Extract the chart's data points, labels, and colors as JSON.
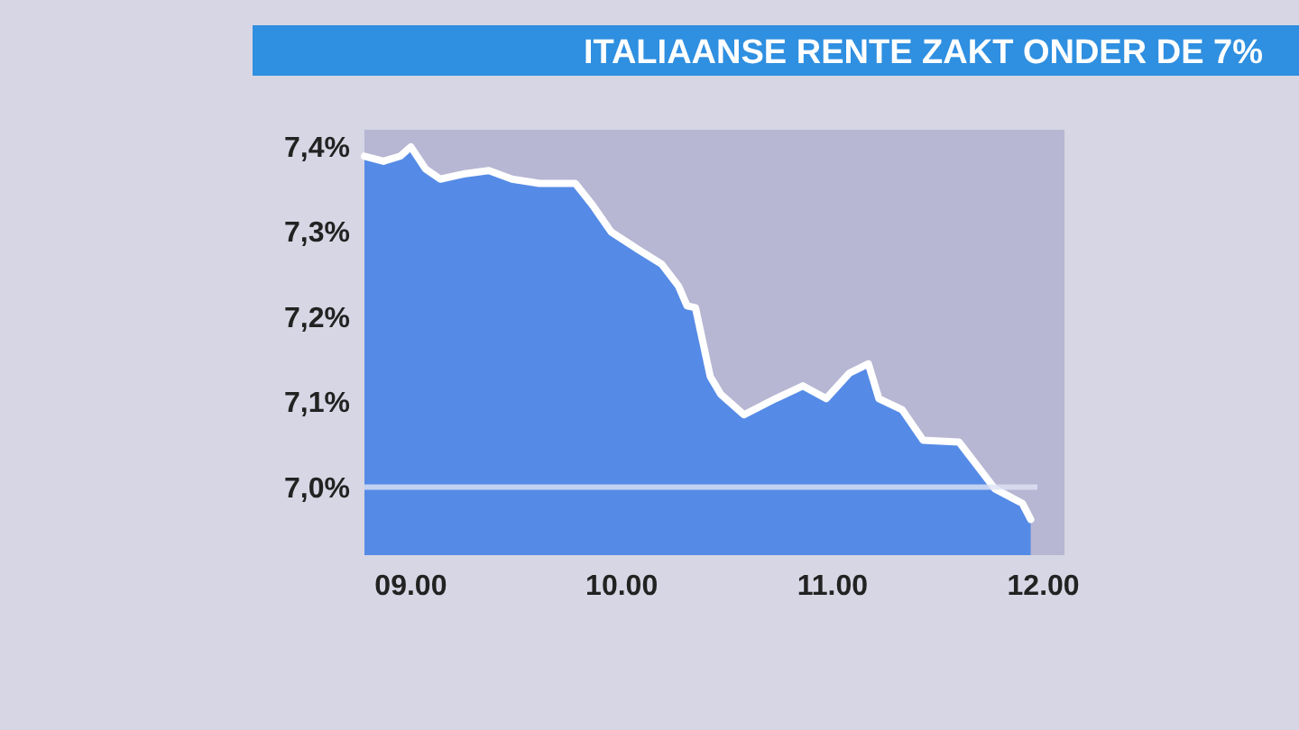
{
  "chart_data": {
    "type": "area",
    "title": "ITALIAANSE RENTE ZAKT ONDER DE 7%",
    "xlim": [
      8.78,
      12.1
    ],
    "xticks": [
      {
        "value": 9,
        "label": "09.00"
      },
      {
        "value": 10,
        "label": "10.00"
      },
      {
        "value": 11,
        "label": "11.00"
      },
      {
        "value": 12,
        "label": "12.00"
      }
    ],
    "ylim": [
      6.92,
      7.42
    ],
    "yticks": [
      {
        "value": 7.0,
        "label": "7,0%"
      },
      {
        "value": 7.1,
        "label": "7,1%"
      },
      {
        "value": 7.2,
        "label": "7,2%"
      },
      {
        "value": 7.3,
        "label": "7,3%"
      },
      {
        "value": 7.4,
        "label": "7,4%"
      }
    ],
    "grid": false,
    "ref_lines": [
      {
        "axis": "y",
        "value": 7.0,
        "color": "#dfe3f5"
      }
    ],
    "series": [
      {
        "color": "#4a86e8",
        "x": [
          8.78,
          8.87,
          8.95,
          9.0,
          9.07,
          9.14,
          9.25,
          9.37,
          9.48,
          9.61,
          9.78,
          9.86,
          9.95,
          10.08,
          10.19,
          10.27,
          10.31,
          10.35,
          10.42,
          10.47,
          10.58,
          10.73,
          10.86,
          10.97,
          11.08,
          11.17,
          11.22,
          11.33,
          11.43,
          11.6,
          11.77,
          11.9,
          11.94
        ],
        "values": [
          7.389,
          7.383,
          7.389,
          7.4,
          7.374,
          7.362,
          7.368,
          7.372,
          7.362,
          7.357,
          7.357,
          7.332,
          7.3,
          7.279,
          7.262,
          7.236,
          7.213,
          7.211,
          7.13,
          7.109,
          7.085,
          7.104,
          7.119,
          7.104,
          7.134,
          7.145,
          7.104,
          7.091,
          7.055,
          7.053,
          6.998,
          6.981,
          6.962
        ]
      }
    ]
  }
}
